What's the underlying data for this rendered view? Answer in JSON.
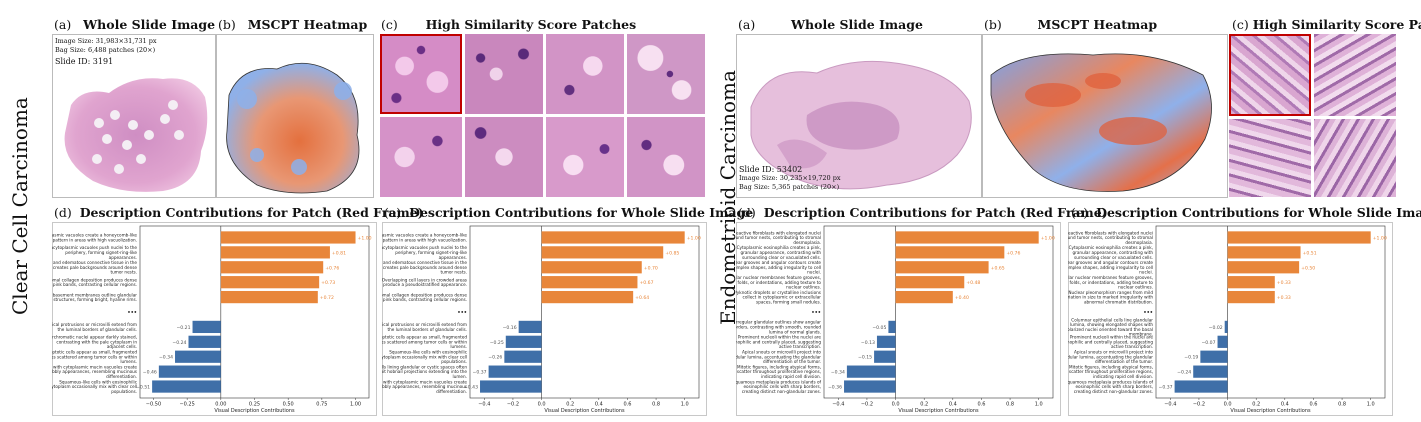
{
  "left": {
    "side_label": "Clear Cell Carcinoma",
    "titles": {
      "a_tag": "(a)",
      "a": "Whole Slide Image",
      "b_tag": "(b)",
      "b": "MSCPT Heatmap",
      "c_tag": "(c)",
      "c": "High Similarity Score Patches",
      "d_tag": "(d)",
      "d": "Description Contributions for Patch (Red Frame)",
      "e_tag": "(e)",
      "e": "Description Contributions for Whole Slide Image"
    },
    "info": {
      "image_size": "Image Size: 31,983×31,731 px",
      "bag_size": "Bag Size: 6,488 patches (20×)",
      "slide_id": "Slide ID: 3191"
    }
  },
  "right": {
    "side_label": "Endometrioid Carcinoma",
    "titles": {
      "a_tag": "(a)",
      "a": "Whole Slide Image",
      "b_tag": "(b)",
      "b": "MSCPT Heatmap",
      "c_tag": "(c)",
      "c": "High Similarity Score Patches",
      "d_tag": "(d)",
      "d": "Description Contributions for Patch (Red Frame)",
      "e_tag": "(e)",
      "e": "Description Contributions for Whole Slide Image"
    },
    "info": {
      "slide_id": "Slide ID: 53402",
      "image_size": "Image Size: 30,235×19,720 px",
      "bag_size": "Bag Size: 5,365 patches (20×)"
    }
  },
  "colors": {
    "positive": "#e8863a",
    "negative": "#3f6fa8",
    "he_pink": "#d98cc0",
    "he_purple": "#7a3d8f",
    "red_frame": "#c00000",
    "heat_red": "#e06040",
    "heat_blue": "#7a9fe0"
  },
  "chart_data": [
    {
      "id": "left-d",
      "type": "bar",
      "orientation": "horizontal",
      "xlabel": "Visual Description Contributions",
      "xlim": [
        -0.6,
        1.1
      ],
      "xticks": [
        "−0.50",
        "−0.25",
        "0.00",
        "0.25",
        "0.50",
        "0.75",
        "1.00"
      ],
      "xtick_values": [
        -0.5,
        -0.25,
        0,
        0.25,
        0.5,
        0.75,
        1.0
      ],
      "ellipsis": "•••",
      "positive": {
        "labels": [
          "Cytoplasmic vacuoles create a honeycomb-like pattern in areas with high vacuolization.",
          "Intracytoplasmic vacuoles push nuclei to the periphery, forming signet-ring-like appearances.",
          "Loose and edematous connective tissue in the stroma creates pale backgrounds around dense tumor nests.",
          "Stromal collagen deposition produces dense pink bands, contrasting cellular regions.",
          "Thickened basement membranes outline glandular structures, forming bright, hyaline rims."
        ],
        "values": [
          1.0,
          0.81,
          0.76,
          0.73,
          0.72
        ],
        "value_labels": [
          "+1.00",
          "+0.81",
          "+0.76",
          "+0.73",
          "+0.72"
        ]
      },
      "negative": {
        "labels": [
          "Apical protrusions or microvilli extend from the luminal borders of glandular cells.",
          "Hyperchromatic nuclei appear darkly stained, contrasting with the pale cytoplasm in adjacent cells.",
          "Apoptotic cells appear as small, fragmented bodies scattered among tumor cells or within lumens.",
          "Cells with cytoplasmic mucin vacuoles create bubbly appearances, resembling mucinous differentiation.",
          "Squamous-like cells with eosinophilic cytoplasm occasionally mix with clear cell populations."
        ],
        "values": [
          -0.21,
          -0.24,
          -0.34,
          -0.46,
          -0.51
        ],
        "value_labels": [
          "−0.21",
          "−0.24",
          "−0.34",
          "−0.46",
          "−0.51"
        ]
      }
    },
    {
      "id": "left-e",
      "type": "bar",
      "orientation": "horizontal",
      "xlabel": "Visual Description Contributions",
      "xlim": [
        -0.5,
        1.1
      ],
      "xticks": [
        "−0.4",
        "−0.2",
        "0.0",
        "0.2",
        "0.4",
        "0.6",
        "0.8",
        "1.0"
      ],
      "xtick_values": [
        -0.4,
        -0.2,
        0,
        0.2,
        0.4,
        0.6,
        0.8,
        1.0
      ],
      "ellipsis": "•••",
      "positive": {
        "labels": [
          "Cytoplasmic vacuoles create a honeycomb-like pattern in areas with high vacuolization.",
          "Intracytoplasmic vacuoles push nuclei to the periphery, forming signet-ring-like appearances.",
          "Loose and edematous connective tissue in the stroma creates pale backgrounds around dense tumor nests.",
          "Overlapping cell layers in crowded areas produce a pseudostratified appearance.",
          "Stromal collagen deposition produces dense pink bands, contrasting cellular regions."
        ],
        "values": [
          1.0,
          0.85,
          0.7,
          0.67,
          0.64
        ],
        "value_labels": [
          "+1.00",
          "+0.85",
          "+0.70",
          "+0.67",
          "+0.64"
        ]
      },
      "negative": {
        "labels": [
          "Apical protrusions or microvilli extend from the luminal borders of glandular cells.",
          "Apoptotic cells appear as small, fragmented bodies scattered among tumor cells or within lumens.",
          "Squamous-like cells with eosinophilic cytoplasm occasionally mix with clear cell populations.",
          "Cells lining glandular or cystic spaces often exhibit hobnail projections extending into the lumen.",
          "Cells with cytoplasmic mucin vacuoles create bubbly appearances, resembling mucinous differentiation."
        ],
        "values": [
          -0.16,
          -0.25,
          -0.26,
          -0.37,
          -0.43
        ],
        "value_labels": [
          "−0.16",
          "−0.25",
          "−0.26",
          "−0.37",
          "−0.43"
        ]
      }
    },
    {
      "id": "right-d",
      "type": "bar",
      "orientation": "horizontal",
      "xlabel": "Visual Description Contributions",
      "xlim": [
        -0.5,
        1.1
      ],
      "xticks": [
        "−0.4",
        "−0.2",
        "0.0",
        "0.2",
        "0.4",
        "0.6",
        "0.8",
        "1.0"
      ],
      "xtick_values": [
        -0.4,
        -0.2,
        0,
        0.2,
        0.4,
        0.6,
        0.8,
        1.0
      ],
      "ellipsis": "•••",
      "positive": {
        "labels": [
          "Reactive fibroblasts with elongated nuclei surround tumor nests, contributing to stromal desmoplasia.",
          "Cytoplasmic eosinophilia creates a pink, granular appearance, contrasting with surrounding clear or vacuolated cells.",
          "Nuclear grooves and angular contours create complex shapes, adding irregularity to cell nuclei.",
          "Irregular nuclear membranes feature grooves, folds, or indentations, adding texture to nuclear outlines.",
          "Pyknotic droplets or crystalline inclusions collect in cytoplasmic or extracellular spaces, forming small nodules."
        ],
        "values": [
          1.0,
          0.76,
          0.65,
          0.48,
          0.4
        ],
        "value_labels": [
          "+1.00",
          "+0.76",
          "+0.65",
          "+0.48",
          "+0.40"
        ]
      },
      "negative": {
        "labels": [
          "Irregular glandular outlines show angular borders, contrasting with smooth, rounded lumina of normal glands.",
          "Prominent nucleoli within the nuclei are eosinophilic and centrally placed, suggesting active transcription.",
          "Apical snouts or microvilli project into glandular lumina, accentuating the glandular differentiation of the tumor.",
          "Mitotic figures, including atypical forms, scatter throughout proliferative regions, indicating rapid cell division.",
          "Squamous metaplasia produces islands of eosinophilic cells with sharp borders, creating distinct non-glandular zones."
        ],
        "values": [
          -0.05,
          -0.13,
          -0.15,
          -0.34,
          -0.36
        ],
        "value_labels": [
          "−0.05",
          "−0.13",
          "−0.15",
          "−0.34",
          "−0.36"
        ]
      }
    },
    {
      "id": "right-e",
      "type": "bar",
      "orientation": "horizontal",
      "xlabel": "Visual Description Contributions",
      "xlim": [
        -0.5,
        1.1
      ],
      "xticks": [
        "−0.4",
        "−0.2",
        "0.0",
        "0.2",
        "0.4",
        "0.6",
        "0.8",
        "1.0"
      ],
      "xtick_values": [
        -0.4,
        -0.2,
        0,
        0.2,
        0.4,
        0.6,
        0.8,
        1.0
      ],
      "ellipsis": "•••",
      "positive": {
        "labels": [
          "Reactive fibroblasts with elongated nuclei surround tumor nests, contributing to stromal desmoplasia.",
          "Cytoplasmic eosinophilia creates a pink, granular appearance, contrasting with surrounding clear or vacuolated cells.",
          "Nuclear grooves and angular contours create complex shapes, adding irregularity to cell nuclei.",
          "Irregular nuclear membranes feature grooves, folds, or indentations, adding texture to nuclear outlines.",
          "Nuclear pleomorphism ranges from mild variation in size to marked irregularity with abnormal chromatin distribution."
        ],
        "values": [
          1.0,
          0.51,
          0.5,
          0.33,
          0.33
        ],
        "value_labels": [
          "+1.00",
          "+0.51",
          "+0.50",
          "+0.33",
          "+0.33"
        ]
      },
      "negative": {
        "labels": [
          "Columnar epithelial cells line glandular lumina, showing elongated shapes with polarized nuclei oriented toward the basal membrane.",
          "Prominent nucleoli within the nuclei are eosinophilic and centrally placed, suggesting active transcription.",
          "Apical snouts or microvilli project into glandular lumina, accentuating the glandular differentiation of the tumor.",
          "Mitotic figures, including atypical forms, scatter throughout proliferative regions, indicating rapid cell division.",
          "Squamous metaplasia produces islands of eosinophilic cells with sharp borders, creating distinct non-glandular zones."
        ],
        "values": [
          -0.02,
          -0.07,
          -0.19,
          -0.24,
          -0.37
        ],
        "value_labels": [
          "−0.02",
          "−0.07",
          "−0.19",
          "−0.24",
          "−0.37"
        ]
      }
    }
  ]
}
